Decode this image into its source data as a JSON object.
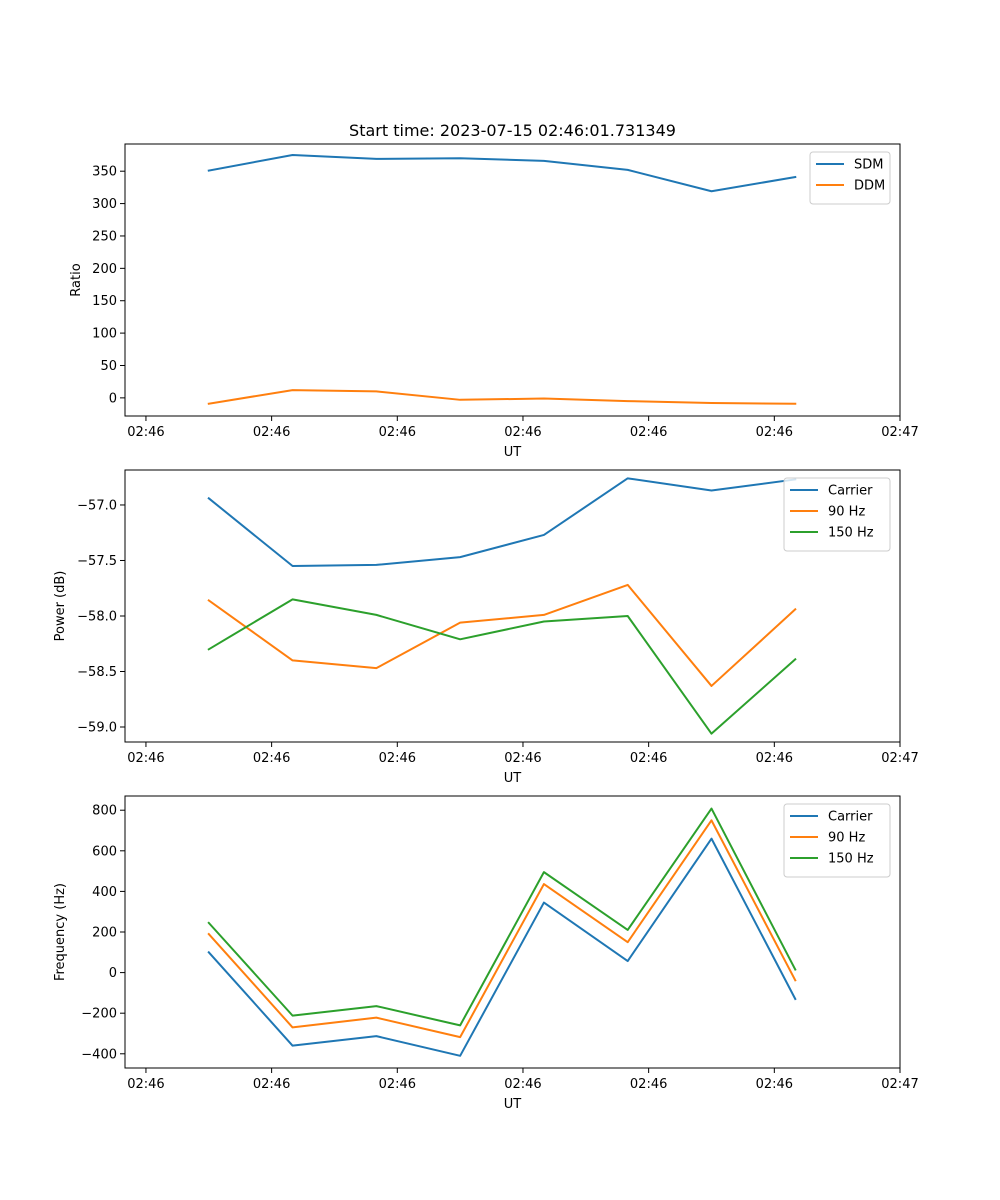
{
  "chart_data": [
    {
      "type": "line",
      "title": "Start time: 2023-07-15 02:46:01.731349",
      "xlabel": "UT",
      "ylabel": "Ratio",
      "x_tick_labels": [
        "02:46",
        "02:46",
        "02:46",
        "02:46",
        "02:46",
        "02:46",
        "02:47"
      ],
      "x": [
        1,
        2,
        3,
        4,
        5,
        6,
        7,
        8
      ],
      "xlim": [
        0,
        9.25
      ],
      "yticks": [
        0,
        50,
        100,
        150,
        200,
        250,
        300,
        350
      ],
      "ylim": [
        -28,
        392
      ],
      "legend_position": "top-right",
      "series": [
        {
          "name": "SDM",
          "color": "#1f77b4",
          "values": [
            351,
            375,
            369,
            370,
            366,
            352,
            319,
            341
          ]
        },
        {
          "name": "DDM",
          "color": "#ff7f0e",
          "values": [
            -9,
            12,
            10,
            -3,
            -1,
            -5,
            -8,
            -9
          ]
        }
      ]
    },
    {
      "type": "line",
      "title": "",
      "xlabel": "UT",
      "ylabel": "Power (dB)",
      "x_tick_labels": [
        "02:46",
        "02:46",
        "02:46",
        "02:46",
        "02:46",
        "02:46",
        "02:47"
      ],
      "x": [
        1,
        2,
        3,
        4,
        5,
        6,
        7,
        8
      ],
      "xlim": [
        0,
        9.25
      ],
      "yticks": [
        -57.0,
        -57.5,
        -58.0,
        -58.5,
        -59.0
      ],
      "ytick_labels": [
        "−57.0",
        "−57.5",
        "−58.0",
        "−58.5",
        "−59.0"
      ],
      "ylim": [
        -59.135,
        -56.685
      ],
      "legend_position": "top-right",
      "series": [
        {
          "name": "Carrier",
          "color": "#1f77b4",
          "values": [
            -56.94,
            -57.55,
            -57.54,
            -57.47,
            -57.27,
            -56.76,
            -56.87,
            -56.77
          ]
        },
        {
          "name": "90 Hz",
          "color": "#ff7f0e",
          "values": [
            -57.86,
            -58.4,
            -58.47,
            -58.06,
            -57.99,
            -57.72,
            -58.63,
            -57.94
          ]
        },
        {
          "name": "150 Hz",
          "color": "#2ca02c",
          "values": [
            -58.3,
            -57.85,
            -57.99,
            -58.21,
            -58.05,
            -58.0,
            -59.06,
            -58.39
          ]
        }
      ]
    },
    {
      "type": "line",
      "title": "",
      "xlabel": "UT",
      "ylabel": "Frequency (Hz)",
      "x_tick_labels": [
        "02:46",
        "02:46",
        "02:46",
        "02:46",
        "02:46",
        "02:46",
        "02:47"
      ],
      "x": [
        1,
        2,
        3,
        4,
        5,
        6,
        7,
        8
      ],
      "xlim": [
        0,
        9.25
      ],
      "yticks": [
        -400,
        -200,
        0,
        200,
        400,
        600,
        800
      ],
      "ytick_labels": [
        "−400",
        "−200",
        "0",
        "200",
        "400",
        "600",
        "800"
      ],
      "ylim": [
        -470,
        870
      ],
      "legend_position": "top-right",
      "series": [
        {
          "name": "Carrier",
          "color": "#1f77b4",
          "values": [
            100,
            -360,
            -313,
            -410,
            345,
            57,
            660,
            -130
          ]
        },
        {
          "name": "90 Hz",
          "color": "#ff7f0e",
          "values": [
            190,
            -270,
            -222,
            -318,
            436,
            150,
            750,
            -38
          ]
        },
        {
          "name": "150 Hz",
          "color": "#2ca02c",
          "values": [
            245,
            -212,
            -165,
            -260,
            495,
            210,
            808,
            15
          ]
        }
      ]
    }
  ]
}
